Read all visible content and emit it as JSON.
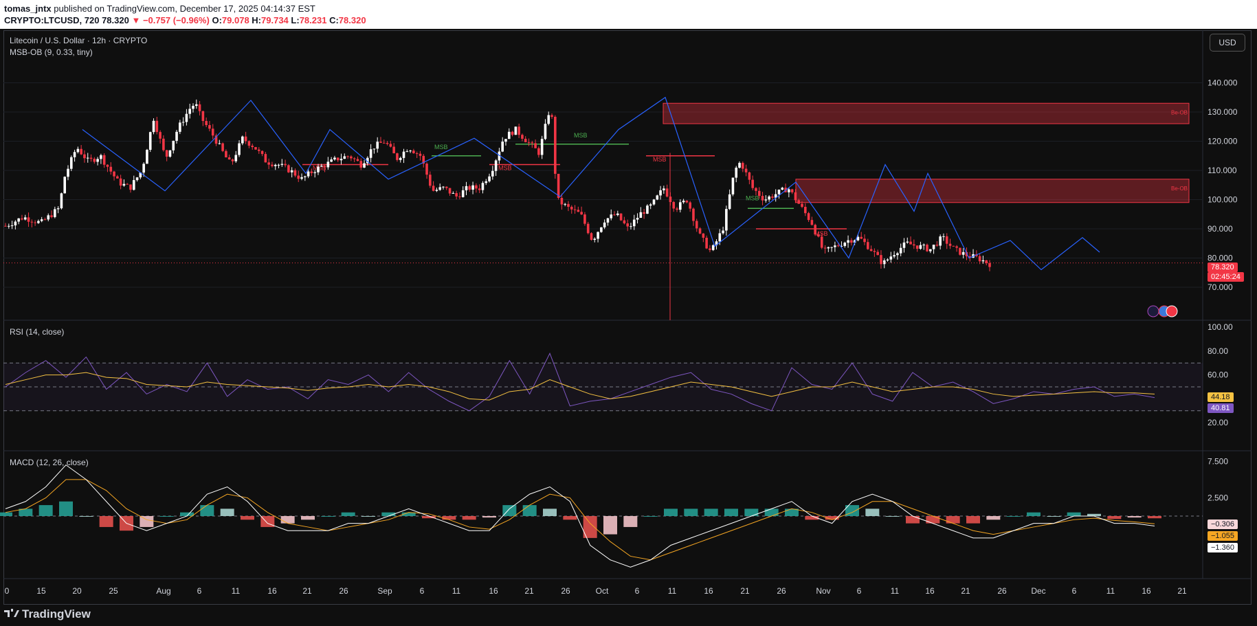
{
  "header": {
    "publisher": "tomas_jntx",
    "published_text": "published on TradingView.com, December 17, 2025 04:14:37 EST",
    "symbol": "CRYPTO:LTCUSD, 720",
    "price": "78.320",
    "change": "−0.757 (−0.96%)",
    "o_label": "O:",
    "o": "79.078",
    "h_label": "H:",
    "h": "79.734",
    "l_label": "L:",
    "l": "78.231",
    "c_label": "C:",
    "c": "78.320"
  },
  "pane_titles": {
    "main": "Litecoin / U.S. Dollar · 12h · CRYPTO",
    "indicator": "MSB-OB (9, 0.33, tiny)",
    "rsi": "RSI (14, close)",
    "macd": "MACD (12, 26, close)"
  },
  "currency_button": "USD",
  "footer": {
    "brand": "TradingView"
  },
  "badges": {
    "price": "78.320",
    "countdown": "02:45:24",
    "rsi_ma": "44.18",
    "rsi": "40.81",
    "macd_hist": "−0.306",
    "macd_signal": "−1.055",
    "macd_line": "−1.360"
  },
  "colors": {
    "bull": "#ffffff",
    "bear": "#f23645",
    "zigzag": "#2962ff",
    "msb_up": "#4caf50",
    "msb_down": "#f23645",
    "rsi_line": "#7e57c2",
    "rsi_ma": "#f5c242",
    "macd_line": "#ffffff",
    "signal_line": "#f5a623"
  },
  "chart_data": [
    {
      "type": "candlestick",
      "title": "Litecoin / U.S. Dollar · 12h · CRYPTO",
      "y_ticks": [
        "140.000",
        "130.000",
        "120.000",
        "110.000",
        "100.000",
        "90.000",
        "80.000",
        "70.000"
      ],
      "ylim": [
        62,
        146
      ],
      "x_ticks": [
        "0",
        "15",
        "20",
        "25",
        "Aug",
        "6",
        "11",
        "16",
        "21",
        "26",
        "Sep",
        "6",
        "11",
        "16",
        "21",
        "26",
        "Oct",
        "6",
        "11",
        "16",
        "21",
        "26",
        "Nov",
        "6",
        "11",
        "16",
        "21",
        "26",
        "Dec",
        "6",
        "11",
        "16",
        "21"
      ],
      "close_path_approx": [
        [
          0,
          91
        ],
        [
          3,
          94
        ],
        [
          6,
          92
        ],
        [
          9,
          97
        ],
        [
          10,
          108
        ],
        [
          12,
          118
        ],
        [
          14,
          113
        ],
        [
          16,
          115
        ],
        [
          19,
          106
        ],
        [
          21,
          104
        ],
        [
          23,
          110
        ],
        [
          25,
          128
        ],
        [
          27,
          114
        ],
        [
          29,
          124
        ],
        [
          31,
          131
        ],
        [
          32,
          133
        ],
        [
          33,
          128
        ],
        [
          35,
          122
        ],
        [
          37,
          115
        ],
        [
          38,
          112
        ],
        [
          40,
          121
        ],
        [
          42,
          118
        ],
        [
          44,
          113
        ],
        [
          46,
          112
        ],
        [
          48,
          110
        ],
        [
          50,
          107
        ],
        [
          52,
          110
        ],
        [
          54,
          112
        ],
        [
          56,
          114
        ],
        [
          58,
          115
        ],
        [
          60,
          112
        ],
        [
          62,
          118
        ],
        [
          64,
          120
        ],
        [
          66,
          114
        ],
        [
          68,
          118
        ],
        [
          70,
          115
        ],
        [
          72,
          103
        ],
        [
          74,
          104
        ],
        [
          76,
          101
        ],
        [
          78,
          104
        ],
        [
          80,
          104
        ],
        [
          82,
          110
        ],
        [
          84,
          121
        ],
        [
          86,
          124
        ],
        [
          88,
          120
        ],
        [
          90,
          116
        ],
        [
          92,
          133
        ],
        [
          93,
          100
        ],
        [
          95,
          97
        ],
        [
          97,
          95
        ],
        [
          99,
          86
        ],
        [
          101,
          93
        ],
        [
          103,
          95
        ],
        [
          105,
          90
        ],
        [
          107,
          95
        ],
        [
          109,
          98
        ],
        [
          111,
          104
        ],
        [
          113,
          97
        ],
        [
          115,
          100
        ],
        [
          117,
          88
        ],
        [
          119,
          82
        ],
        [
          121,
          90
        ],
        [
          123,
          110
        ],
        [
          124,
          113
        ],
        [
          126,
          104
        ],
        [
          128,
          100
        ],
        [
          130,
          102
        ],
        [
          132,
          104
        ],
        [
          134,
          98
        ],
        [
          136,
          92
        ],
        [
          138,
          82
        ],
        [
          140,
          84
        ],
        [
          142,
          86
        ],
        [
          144,
          87
        ],
        [
          146,
          83
        ],
        [
          148,
          78
        ],
        [
          150,
          82
        ],
        [
          152,
          85
        ],
        [
          154,
          84
        ],
        [
          156,
          83
        ],
        [
          158,
          87
        ],
        [
          160,
          83
        ],
        [
          162,
          81
        ],
        [
          164,
          80
        ],
        [
          166,
          78
        ]
      ],
      "order_blocks": [
        {
          "label": "Be-OB",
          "low": 126,
          "high": 133
        },
        {
          "label": "Be-OB",
          "low": 99,
          "high": 107
        }
      ],
      "structure_labels": [
        "MSB",
        "MSB",
        "MSB",
        "MSB",
        "MSB",
        "MSB",
        "MSB"
      ],
      "last_price": 78.32
    },
    {
      "type": "line",
      "title": "RSI (14, close)",
      "y_ticks": [
        "100.00",
        "80.00",
        "60.00",
        "20.00"
      ],
      "ylim": [
        0,
        100
      ],
      "bands": [
        30,
        50,
        70
      ],
      "series": [
        {
          "name": "RSI",
          "values": [
            50,
            62,
            72,
            58,
            75,
            48,
            62,
            44,
            52,
            46,
            70,
            42,
            56,
            48,
            50,
            40,
            56,
            52,
            60,
            46,
            62,
            48,
            38,
            30,
            42,
            72,
            44,
            78,
            34,
            38,
            40,
            46,
            52,
            58,
            62,
            48,
            44,
            36,
            30,
            66,
            52,
            48,
            70,
            44,
            38,
            62,
            50,
            54,
            46,
            36,
            40,
            46,
            44,
            48,
            50,
            42,
            44,
            41
          ]
        },
        {
          "name": "RSI MA",
          "values": [
            52,
            56,
            60,
            60,
            62,
            58,
            57,
            52,
            51,
            50,
            54,
            52,
            51,
            50,
            49,
            47,
            49,
            50,
            52,
            50,
            52,
            50,
            46,
            40,
            39,
            46,
            48,
            56,
            50,
            44,
            40,
            42,
            46,
            50,
            54,
            52,
            50,
            46,
            42,
            46,
            50,
            50,
            54,
            50,
            46,
            48,
            50,
            50,
            48,
            44,
            42,
            43,
            44,
            45,
            46,
            45,
            45,
            44
          ]
        }
      ]
    },
    {
      "type": "bar+line",
      "title": "MACD (12, 26, close)",
      "y_ticks": [
        "7.500",
        "2.500"
      ],
      "ylim": [
        -8,
        8
      ],
      "series": [
        {
          "name": "MACD",
          "values": [
            1,
            2,
            4,
            7,
            5,
            2,
            -1,
            -2,
            -1,
            0,
            3,
            4,
            2,
            -1,
            -2,
            -2,
            -2,
            -1,
            -1,
            0,
            1,
            0,
            -1,
            -2,
            -2,
            1,
            3,
            4,
            2,
            -4,
            -6,
            -7,
            -6,
            -4,
            -3,
            -2,
            -1,
            0,
            1,
            2,
            0,
            -1,
            2,
            3,
            2,
            0,
            -1,
            -2,
            -3,
            -3,
            -2,
            -1,
            -1,
            0,
            0,
            -1,
            -1,
            -1.36
          ]
        },
        {
          "name": "Signal",
          "values": [
            0.5,
            1,
            2.5,
            5,
            5,
            3.5,
            1,
            -0.5,
            -1,
            -0.5,
            1.5,
            3,
            2.5,
            0.5,
            -1,
            -1.5,
            -2,
            -1.5,
            -1,
            -0.5,
            0.5,
            0.3,
            -0.5,
            -1.5,
            -1.8,
            -0.5,
            1.5,
            3,
            2.5,
            -1,
            -3.5,
            -5.5,
            -6,
            -5,
            -4,
            -3,
            -2,
            -1,
            0,
            1,
            0.5,
            -0.5,
            0.5,
            2,
            2,
            1,
            0,
            -1,
            -2,
            -2.5,
            -2,
            -1.5,
            -1,
            -0.5,
            -0.3,
            -0.6,
            -0.8,
            -1.055
          ]
        },
        {
          "name": "Histogram",
          "values": [
            0.5,
            1,
            1.5,
            2,
            0,
            -1.5,
            -2,
            -1.5,
            0,
            0.5,
            1.5,
            1,
            -0.5,
            -1.5,
            -1,
            -0.5,
            0,
            0.5,
            0,
            0.5,
            0.5,
            -0.3,
            -0.5,
            -0.5,
            -0.2,
            1.5,
            1.5,
            1,
            -0.5,
            -3,
            -2.5,
            -1.5,
            0,
            1,
            1,
            1,
            1,
            1,
            1,
            1,
            -0.5,
            -0.5,
            1.5,
            1,
            0,
            -1,
            -1,
            -1,
            -1,
            -0.5,
            0,
            0.5,
            0,
            0.5,
            0.3,
            -0.4,
            -0.2,
            -0.306
          ]
        }
      ]
    }
  ]
}
